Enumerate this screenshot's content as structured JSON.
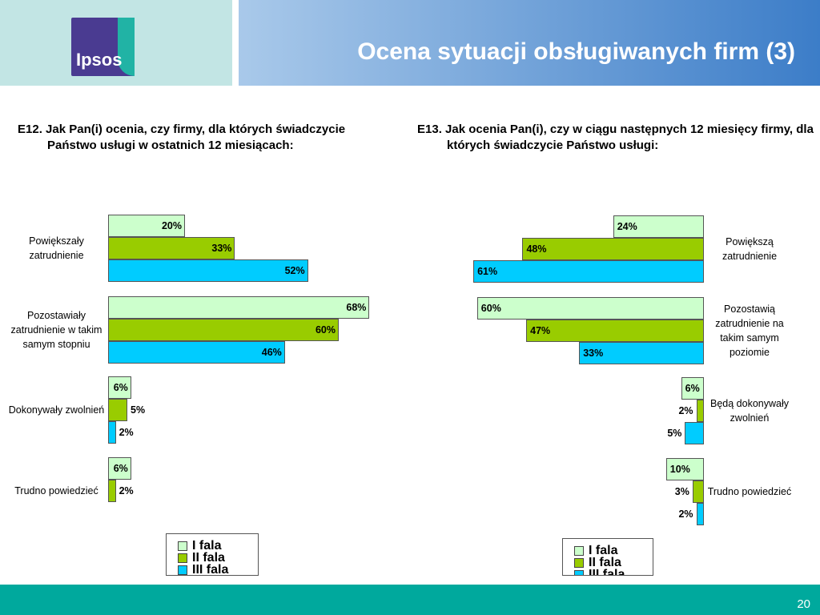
{
  "header": {
    "logo": "Ipsos",
    "title": "Ocena sytuacji obsługiwanych firm (3)"
  },
  "chart_data": [
    {
      "type": "bar",
      "title": "E12. Jak Pan(i) ocenia, czy firmy, dla których świadczycie Państwo usługi w ostatnich 12 miesiącach:",
      "categories": [
        "Powiększały zatrudnienie",
        "Pozostawiały zatrudnienie w takim samym stopniu",
        "Dokonywały zwolnień",
        "Trudno powiedzieć"
      ],
      "series": [
        {
          "name": "I fala",
          "color": "#ccffcc",
          "values": [
            20,
            68,
            6,
            6
          ],
          "value_labels": [
            "20%",
            "68%",
            "6%",
            "6%"
          ]
        },
        {
          "name": "II fala",
          "color": "#99cc00",
          "values": [
            33,
            60,
            5,
            2
          ],
          "value_labels": [
            "33%",
            "60%",
            "5%",
            "2%"
          ]
        },
        {
          "name": "III fala",
          "color": "#00ccff",
          "values": [
            52,
            46,
            2,
            null
          ],
          "value_labels": [
            "52%",
            "46%",
            "2%",
            null
          ]
        }
      ]
    },
    {
      "type": "bar",
      "title": "E13. Jak ocenia Pan(i), czy w ciągu następnych 12 miesięcy firmy, dla których świadczycie Państwo usługi:",
      "categories": [
        "Powiększą zatrudnienie",
        "Pozostawią zatrudnienie na takim samym poziomie",
        "Będą dokonywały zwolnień",
        "Trudno powiedzieć"
      ],
      "series": [
        {
          "name": "I fala",
          "color": "#ccffcc",
          "values": [
            24,
            60,
            6,
            10
          ],
          "value_labels": [
            "24%",
            "60%",
            "6%",
            "10%"
          ]
        },
        {
          "name": "II fala",
          "color": "#99cc00",
          "values": [
            48,
            47,
            2,
            3
          ],
          "value_labels": [
            "48%",
            "47%",
            "2%",
            "3%"
          ]
        },
        {
          "name": "III fala",
          "color": "#00ccff",
          "values": [
            61,
            33,
            5,
            2
          ],
          "value_labels": [
            "61%",
            "33%",
            "5%",
            "2%"
          ]
        }
      ]
    }
  ],
  "footer": {
    "page": "20"
  }
}
